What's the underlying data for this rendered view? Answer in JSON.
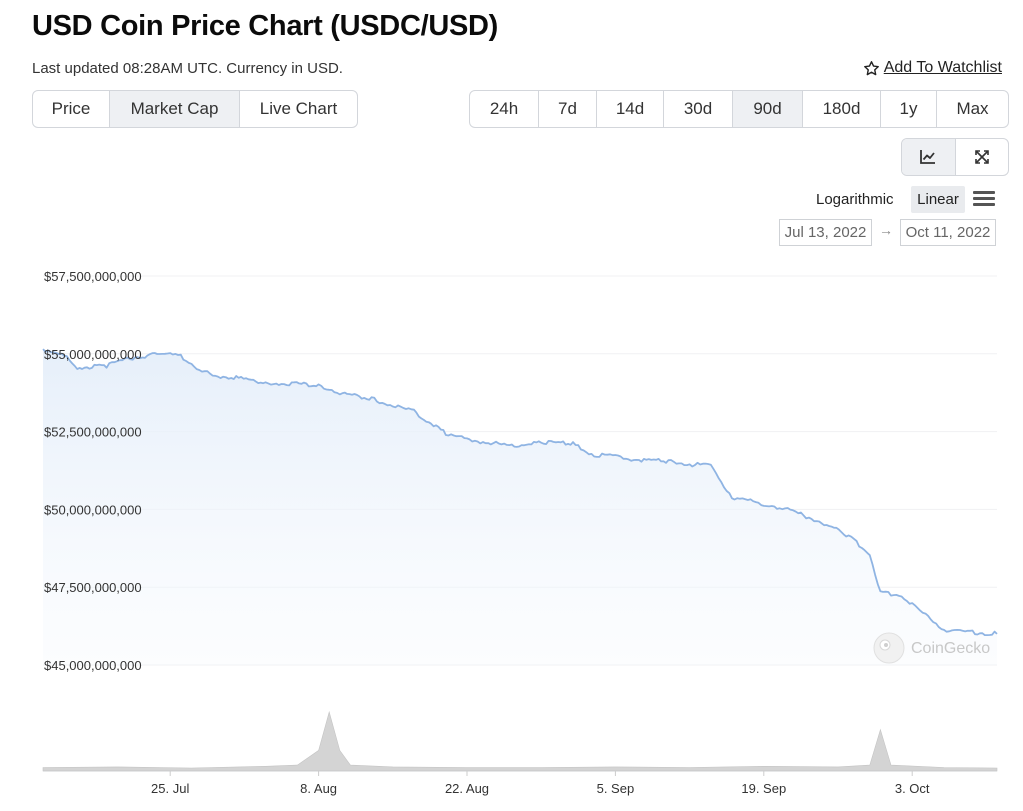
{
  "header": {
    "title": "USD Coin Price Chart (USDC/USD)",
    "subtitle": "Last updated 08:28AM UTC. Currency in USD.",
    "watchlist_label": "Add To Watchlist"
  },
  "tabs": [
    {
      "label": "Price",
      "active": false
    },
    {
      "label": "Market Cap",
      "active": true
    },
    {
      "label": "Live Chart",
      "active": false
    }
  ],
  "ranges": [
    {
      "label": "24h",
      "active": false
    },
    {
      "label": "7d",
      "active": false
    },
    {
      "label": "14d",
      "active": false
    },
    {
      "label": "30d",
      "active": false
    },
    {
      "label": "90d",
      "active": true
    },
    {
      "label": "180d",
      "active": false
    },
    {
      "label": "1y",
      "active": false
    },
    {
      "label": "Max",
      "active": false
    }
  ],
  "view_icons": [
    "line-chart-icon",
    "expand-icon"
  ],
  "scale": {
    "logarithmic_label": "Logarithmic",
    "linear_label": "Linear",
    "active": "linear"
  },
  "date_range": {
    "from": "Jul 13, 2022",
    "to": "Oct 11, 2022"
  },
  "watermark": "CoinGecko",
  "colors": {
    "line": "#8fb4e3",
    "area_top": "#e6effa",
    "volume": "#cccccc",
    "active_button": "#eef0f3"
  },
  "chart_data": {
    "type": "area",
    "title": "",
    "xlabel": "",
    "ylabel": "",
    "y_tick_labels": [
      "$57,500,000,000",
      "$55,000,000,000",
      "$52,500,000,000",
      "$50,000,000,000",
      "$47,500,000,000",
      "$45,000,000,000"
    ],
    "y_ticks": [
      57500000000,
      55000000000,
      52500000000,
      50000000000,
      47500000000,
      45000000000
    ],
    "ylim": [
      45000000000,
      57500000000
    ],
    "x_tick_labels": [
      "25. Jul",
      "8. Aug",
      "22. Aug",
      "5. Sep",
      "19. Sep",
      "3. Oct"
    ],
    "x_ticks": [
      "2022-07-25",
      "2022-08-08",
      "2022-08-22",
      "2022-09-05",
      "2022-09-19",
      "2022-10-03"
    ],
    "xlim": [
      "2022-07-13",
      "2022-10-11"
    ],
    "grid": true,
    "series": [
      {
        "x": [
          "2022-07-13",
          "2022-07-15",
          "2022-07-16",
          "2022-07-19",
          "2022-07-21",
          "2022-07-24",
          "2022-07-26",
          "2022-07-28",
          "2022-07-29",
          "2022-07-31",
          "2022-08-03",
          "2022-08-05",
          "2022-08-08",
          "2022-08-10",
          "2022-08-13",
          "2022-08-15",
          "2022-08-17",
          "2022-08-20",
          "2022-08-22",
          "2022-08-24",
          "2022-08-26",
          "2022-08-29",
          "2022-09-01",
          "2022-09-03",
          "2022-09-05",
          "2022-09-07",
          "2022-09-10",
          "2022-09-12",
          "2022-09-14",
          "2022-09-16",
          "2022-09-18",
          "2022-09-20",
          "2022-09-22",
          "2022-09-24",
          "2022-09-27",
          "2022-09-29",
          "2022-09-30",
          "2022-10-02",
          "2022-10-04",
          "2022-10-06",
          "2022-10-08",
          "2022-10-11"
        ],
        "values": [
          55150000000,
          55000000000,
          54550000000,
          54600000000,
          54850000000,
          55000000000,
          54920000000,
          54450000000,
          54300000000,
          54250000000,
          54080000000,
          54050000000,
          54000000000,
          53750000000,
          53550000000,
          53350000000,
          53150000000,
          52450000000,
          52250000000,
          52150000000,
          52050000000,
          52150000000,
          52100000000,
          51750000000,
          51700000000,
          51600000000,
          51550000000,
          51450000000,
          51400000000,
          50400000000,
          50250000000,
          50100000000,
          49900000000,
          49650000000,
          49150000000,
          48550000000,
          47350000000,
          47250000000,
          46650000000,
          46150000000,
          46050000000,
          46000000000
        ]
      }
    ],
    "volume": {
      "x": [
        "2022-07-13",
        "2022-07-20",
        "2022-07-27",
        "2022-08-03",
        "2022-08-06",
        "2022-08-08",
        "2022-08-09",
        "2022-08-10",
        "2022-08-11",
        "2022-08-15",
        "2022-08-22",
        "2022-08-29",
        "2022-09-05",
        "2022-09-12",
        "2022-09-19",
        "2022-09-26",
        "2022-09-29",
        "2022-09-30",
        "2022-10-01",
        "2022-10-06",
        "2022-10-11"
      ],
      "values": [
        0.06,
        0.07,
        0.05,
        0.08,
        0.1,
        0.35,
        1.0,
        0.35,
        0.1,
        0.07,
        0.06,
        0.06,
        0.07,
        0.06,
        0.08,
        0.07,
        0.1,
        0.7,
        0.1,
        0.06,
        0.05
      ]
    }
  }
}
